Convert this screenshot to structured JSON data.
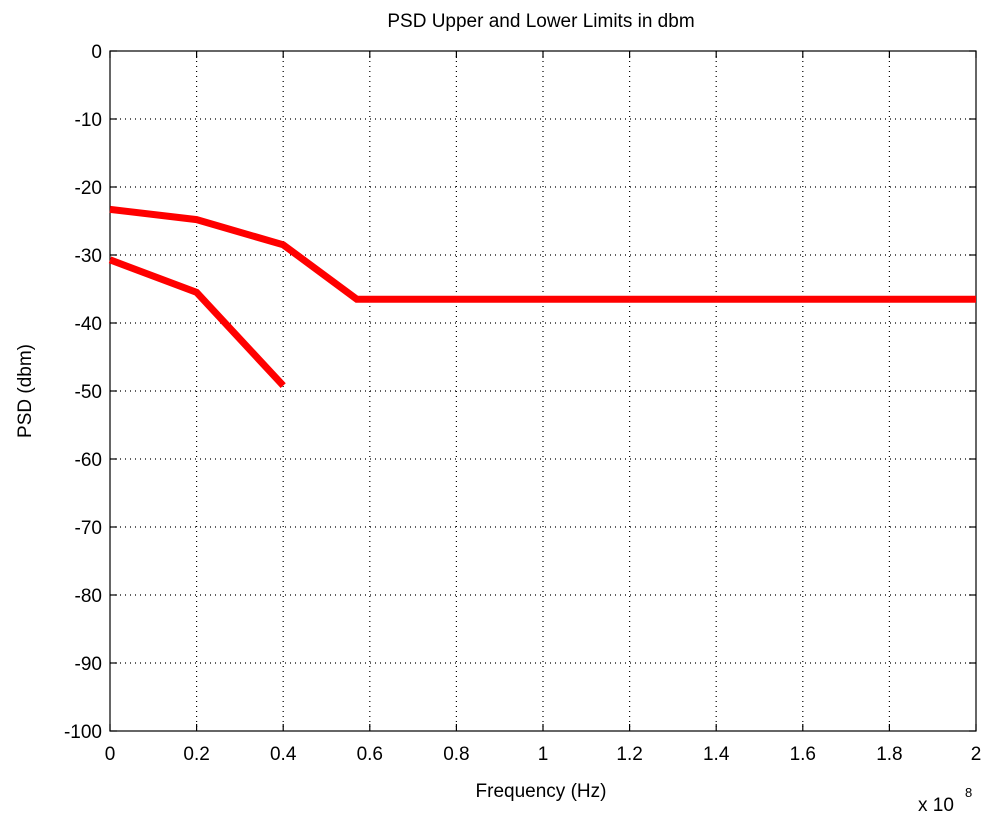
{
  "chart_data": {
    "type": "line",
    "title": "PSD Upper and Lower Limits in dbm",
    "xlabel": "Frequency (Hz)",
    "ylabel": "PSD (dbm)",
    "x_exponent_label": "x 10",
    "x_exponent_power": "8",
    "xlim": [
      0,
      2
    ],
    "ylim": [
      -100,
      0
    ],
    "xticks": [
      0,
      0.2,
      0.4,
      0.6,
      0.8,
      1,
      1.2,
      1.4,
      1.6,
      1.8,
      2
    ],
    "xtick_labels": [
      "0",
      "0.2",
      "0.4",
      "0.6",
      "0.8",
      "1",
      "1.2",
      "1.4",
      "1.6",
      "1.8",
      "2"
    ],
    "yticks": [
      0,
      -10,
      -20,
      -30,
      -40,
      -50,
      -60,
      -70,
      -80,
      -90,
      -100
    ],
    "ytick_labels": [
      "0",
      "-10",
      "-20",
      "-30",
      "-40",
      "-50",
      "-60",
      "-70",
      "-80",
      "-90",
      "-100"
    ],
    "grid": true,
    "series": [
      {
        "color": "#ff0000",
        "x": [
          0,
          0.2,
          0.4,
          0.57,
          2
        ],
        "y": [
          -23.3,
          -24.8,
          -28.5,
          -36.5,
          -36.5
        ]
      },
      {
        "color": "#ff0000",
        "x": [
          0,
          0.2,
          0.4
        ],
        "y": [
          -30.7,
          -35.5,
          -49.2
        ]
      }
    ]
  }
}
